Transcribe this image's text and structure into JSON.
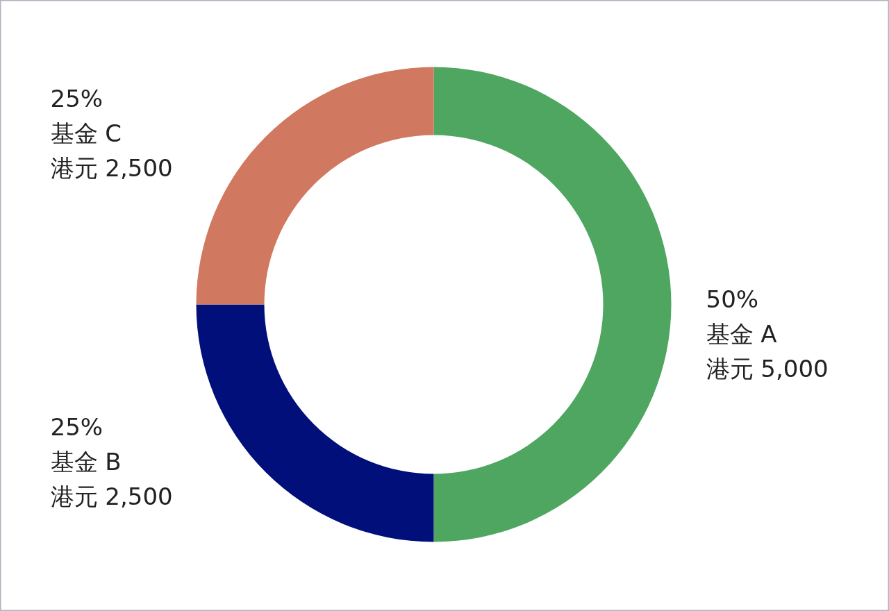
{
  "chart_data": {
    "type": "donut",
    "categories": [
      "基金 A",
      "基金 B",
      "基金 C"
    ],
    "values": [
      50,
      25,
      25
    ],
    "colors": [
      "#4ea661",
      "#000f7a",
      "#d07860"
    ],
    "value_labels": [
      "50%",
      "25%",
      "25%"
    ],
    "annotations": [
      "港元 5,000",
      "港元 2,500",
      "港元 2,500"
    ]
  }
}
